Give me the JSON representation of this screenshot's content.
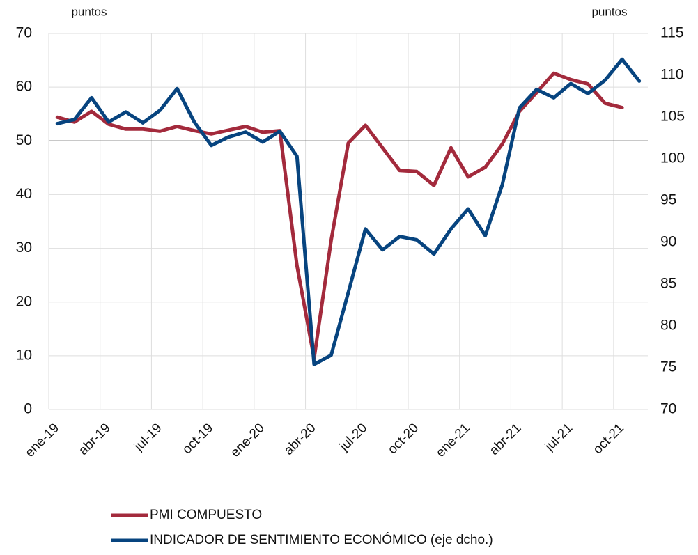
{
  "chart_data": {
    "type": "line",
    "y_unit": "puntos",
    "y2_unit": "puntos",
    "categories": [
      "ene-19",
      null,
      null,
      "abr-19",
      null,
      null,
      "jul-19",
      null,
      null,
      "oct-19",
      null,
      null,
      "ene-20",
      null,
      null,
      "abr-20",
      null,
      null,
      "jul-20",
      null,
      null,
      "oct-20",
      null,
      null,
      "ene-21",
      null,
      null,
      "abr-21",
      null,
      null,
      "jul-21",
      null,
      null,
      "oct-21",
      null
    ],
    "series": [
      {
        "name": "PMI COMPUESTO",
        "color": "#a32a3c",
        "axis": "y",
        "values": [
          54.4,
          53.5,
          55.5,
          53.1,
          52.2,
          52.2,
          51.8,
          52.7,
          51.9,
          51.3,
          52.0,
          52.7,
          51.6,
          51.9,
          26.8,
          9.5,
          31.5,
          49.6,
          52.9,
          48.7,
          44.5,
          44.3,
          41.7,
          48.7,
          43.3,
          45.1,
          49.4,
          55.5,
          59.0,
          62.6,
          61.4,
          60.6,
          57.0,
          56.2,
          null
        ]
      },
      {
        "name": "INDICADOR DE SENTIMIENTO ECONÓMICO (eje dcho.)",
        "color": "#07447f",
        "axis": "y2",
        "values": [
          104.2,
          104.7,
          107.3,
          104.4,
          105.6,
          104.3,
          105.8,
          108.4,
          104.4,
          101.6,
          102.6,
          103.2,
          102.0,
          103.3,
          100.3,
          75.4,
          76.5,
          84.0,
          91.6,
          89.1,
          90.7,
          90.3,
          88.6,
          91.6,
          94.0,
          90.8,
          96.9,
          106.1,
          108.3,
          107.3,
          109.0,
          107.8,
          109.4,
          111.9,
          109.3
        ]
      }
    ],
    "ylim": [
      0,
      70
    ],
    "yticks": [
      0,
      10,
      20,
      30,
      40,
      50,
      60,
      70
    ],
    "y2lim": [
      70,
      115
    ],
    "y2ticks": [
      70,
      75,
      80,
      85,
      90,
      95,
      100,
      105,
      110,
      115
    ],
    "reference_line": 50,
    "grid": true
  }
}
